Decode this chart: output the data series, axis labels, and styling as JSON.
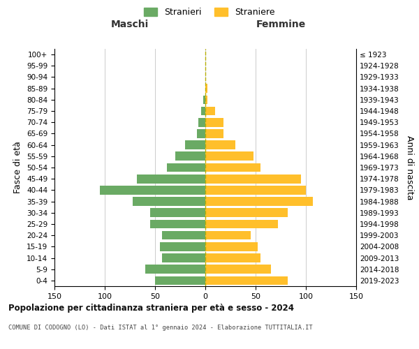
{
  "age_groups": [
    "0-4",
    "5-9",
    "10-14",
    "15-19",
    "20-24",
    "25-29",
    "30-34",
    "35-39",
    "40-44",
    "45-49",
    "50-54",
    "55-59",
    "60-64",
    "65-69",
    "70-74",
    "75-79",
    "80-84",
    "85-89",
    "90-94",
    "95-99",
    "100+"
  ],
  "birth_years": [
    "2019-2023",
    "2014-2018",
    "2009-2013",
    "2004-2008",
    "1999-2003",
    "1994-1998",
    "1989-1993",
    "1984-1988",
    "1979-1983",
    "1974-1978",
    "1969-1973",
    "1964-1968",
    "1959-1963",
    "1954-1958",
    "1949-1953",
    "1944-1948",
    "1939-1943",
    "1934-1938",
    "1929-1933",
    "1924-1928",
    "≤ 1923"
  ],
  "maschi": [
    50,
    60,
    43,
    45,
    43,
    55,
    55,
    72,
    105,
    68,
    38,
    30,
    20,
    8,
    7,
    4,
    2,
    0,
    0,
    0,
    0
  ],
  "femmine": [
    82,
    65,
    55,
    52,
    45,
    72,
    82,
    107,
    100,
    95,
    55,
    48,
    30,
    18,
    18,
    10,
    2,
    2,
    0,
    0,
    0
  ],
  "color_maschi": "#6aaa64",
  "color_femmine": "#ffbf2b",
  "color_dashed": "#b8b000",
  "title_main": "Popolazione per cittadinanza straniera per età e sesso - 2024",
  "title_sub": "COMUNE DI CODOGNO (LO) - Dati ISTAT al 1° gennaio 2024 - Elaborazione TUTTITALIA.IT",
  "label_maschi_header": "Maschi",
  "label_femmine_header": "Femmine",
  "legend_stranieri": "Stranieri",
  "legend_straniere": "Straniere",
  "ylabel_left": "Fasce di età",
  "ylabel_right": "Anni di nascita",
  "xlim": 150,
  "background_color": "#ffffff",
  "grid_color": "#cccccc"
}
